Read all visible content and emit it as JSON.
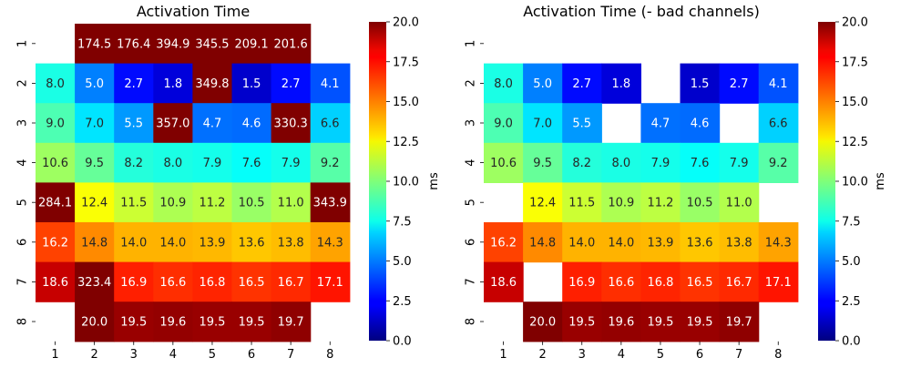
{
  "chart_data": [
    {
      "type": "heatmap",
      "title": "Activation Time",
      "xlabel": "",
      "ylabel": "",
      "x_ticks": [
        "1",
        "2",
        "3",
        "4",
        "5",
        "6",
        "7",
        "8"
      ],
      "y_ticks": [
        "1",
        "2",
        "3",
        "4",
        "5",
        "6",
        "7",
        "8"
      ],
      "colorbar": {
        "label": "ms",
        "range": [
          0,
          20
        ],
        "ticks": [
          "0.0",
          "2.5",
          "5.0",
          "7.5",
          "10.0",
          "12.5",
          "15.0",
          "17.5",
          "20.0"
        ],
        "colormap": "jet"
      },
      "values": [
        [
          null,
          174.5,
          176.4,
          394.9,
          345.5,
          209.1,
          201.6,
          null
        ],
        [
          8.0,
          5.0,
          2.7,
          1.8,
          349.8,
          1.5,
          2.7,
          4.1
        ],
        [
          9.0,
          7.0,
          5.5,
          357.0,
          4.7,
          4.6,
          330.3,
          6.6
        ],
        [
          10.6,
          9.5,
          8.2,
          8.0,
          7.9,
          7.6,
          7.9,
          9.2
        ],
        [
          284.1,
          12.4,
          11.5,
          10.9,
          11.2,
          10.5,
          11.0,
          343.9
        ],
        [
          16.2,
          14.8,
          14.0,
          14.0,
          13.9,
          13.6,
          13.8,
          14.3
        ],
        [
          18.6,
          323.4,
          16.9,
          16.6,
          16.8,
          16.5,
          16.7,
          17.1
        ],
        [
          null,
          20.0,
          19.5,
          19.6,
          19.5,
          19.5,
          19.7,
          null
        ]
      ]
    },
    {
      "type": "heatmap",
      "title": "Activation Time (- bad channels)",
      "xlabel": "",
      "ylabel": "",
      "x_ticks": [
        "1",
        "2",
        "3",
        "4",
        "5",
        "6",
        "7",
        "8"
      ],
      "y_ticks": [
        "1",
        "2",
        "3",
        "4",
        "5",
        "6",
        "7",
        "8"
      ],
      "colorbar": {
        "label": "ms",
        "range": [
          0,
          20
        ],
        "ticks": [
          "0.0",
          "2.5",
          "5.0",
          "7.5",
          "10.0",
          "12.5",
          "15.0",
          "17.5",
          "20.0"
        ],
        "colormap": "jet"
      },
      "values": [
        [
          null,
          null,
          null,
          null,
          null,
          null,
          null,
          null
        ],
        [
          8.0,
          5.0,
          2.7,
          1.8,
          null,
          1.5,
          2.7,
          4.1
        ],
        [
          9.0,
          7.0,
          5.5,
          null,
          4.7,
          4.6,
          null,
          6.6
        ],
        [
          10.6,
          9.5,
          8.2,
          8.0,
          7.9,
          7.6,
          7.9,
          9.2
        ],
        [
          null,
          12.4,
          11.5,
          10.9,
          11.2,
          10.5,
          11.0,
          null
        ],
        [
          16.2,
          14.8,
          14.0,
          14.0,
          13.9,
          13.6,
          13.8,
          14.3
        ],
        [
          18.6,
          null,
          16.9,
          16.6,
          16.8,
          16.5,
          16.7,
          17.1
        ],
        [
          null,
          20.0,
          19.5,
          19.6,
          19.5,
          19.5,
          19.7,
          null
        ]
      ]
    }
  ]
}
